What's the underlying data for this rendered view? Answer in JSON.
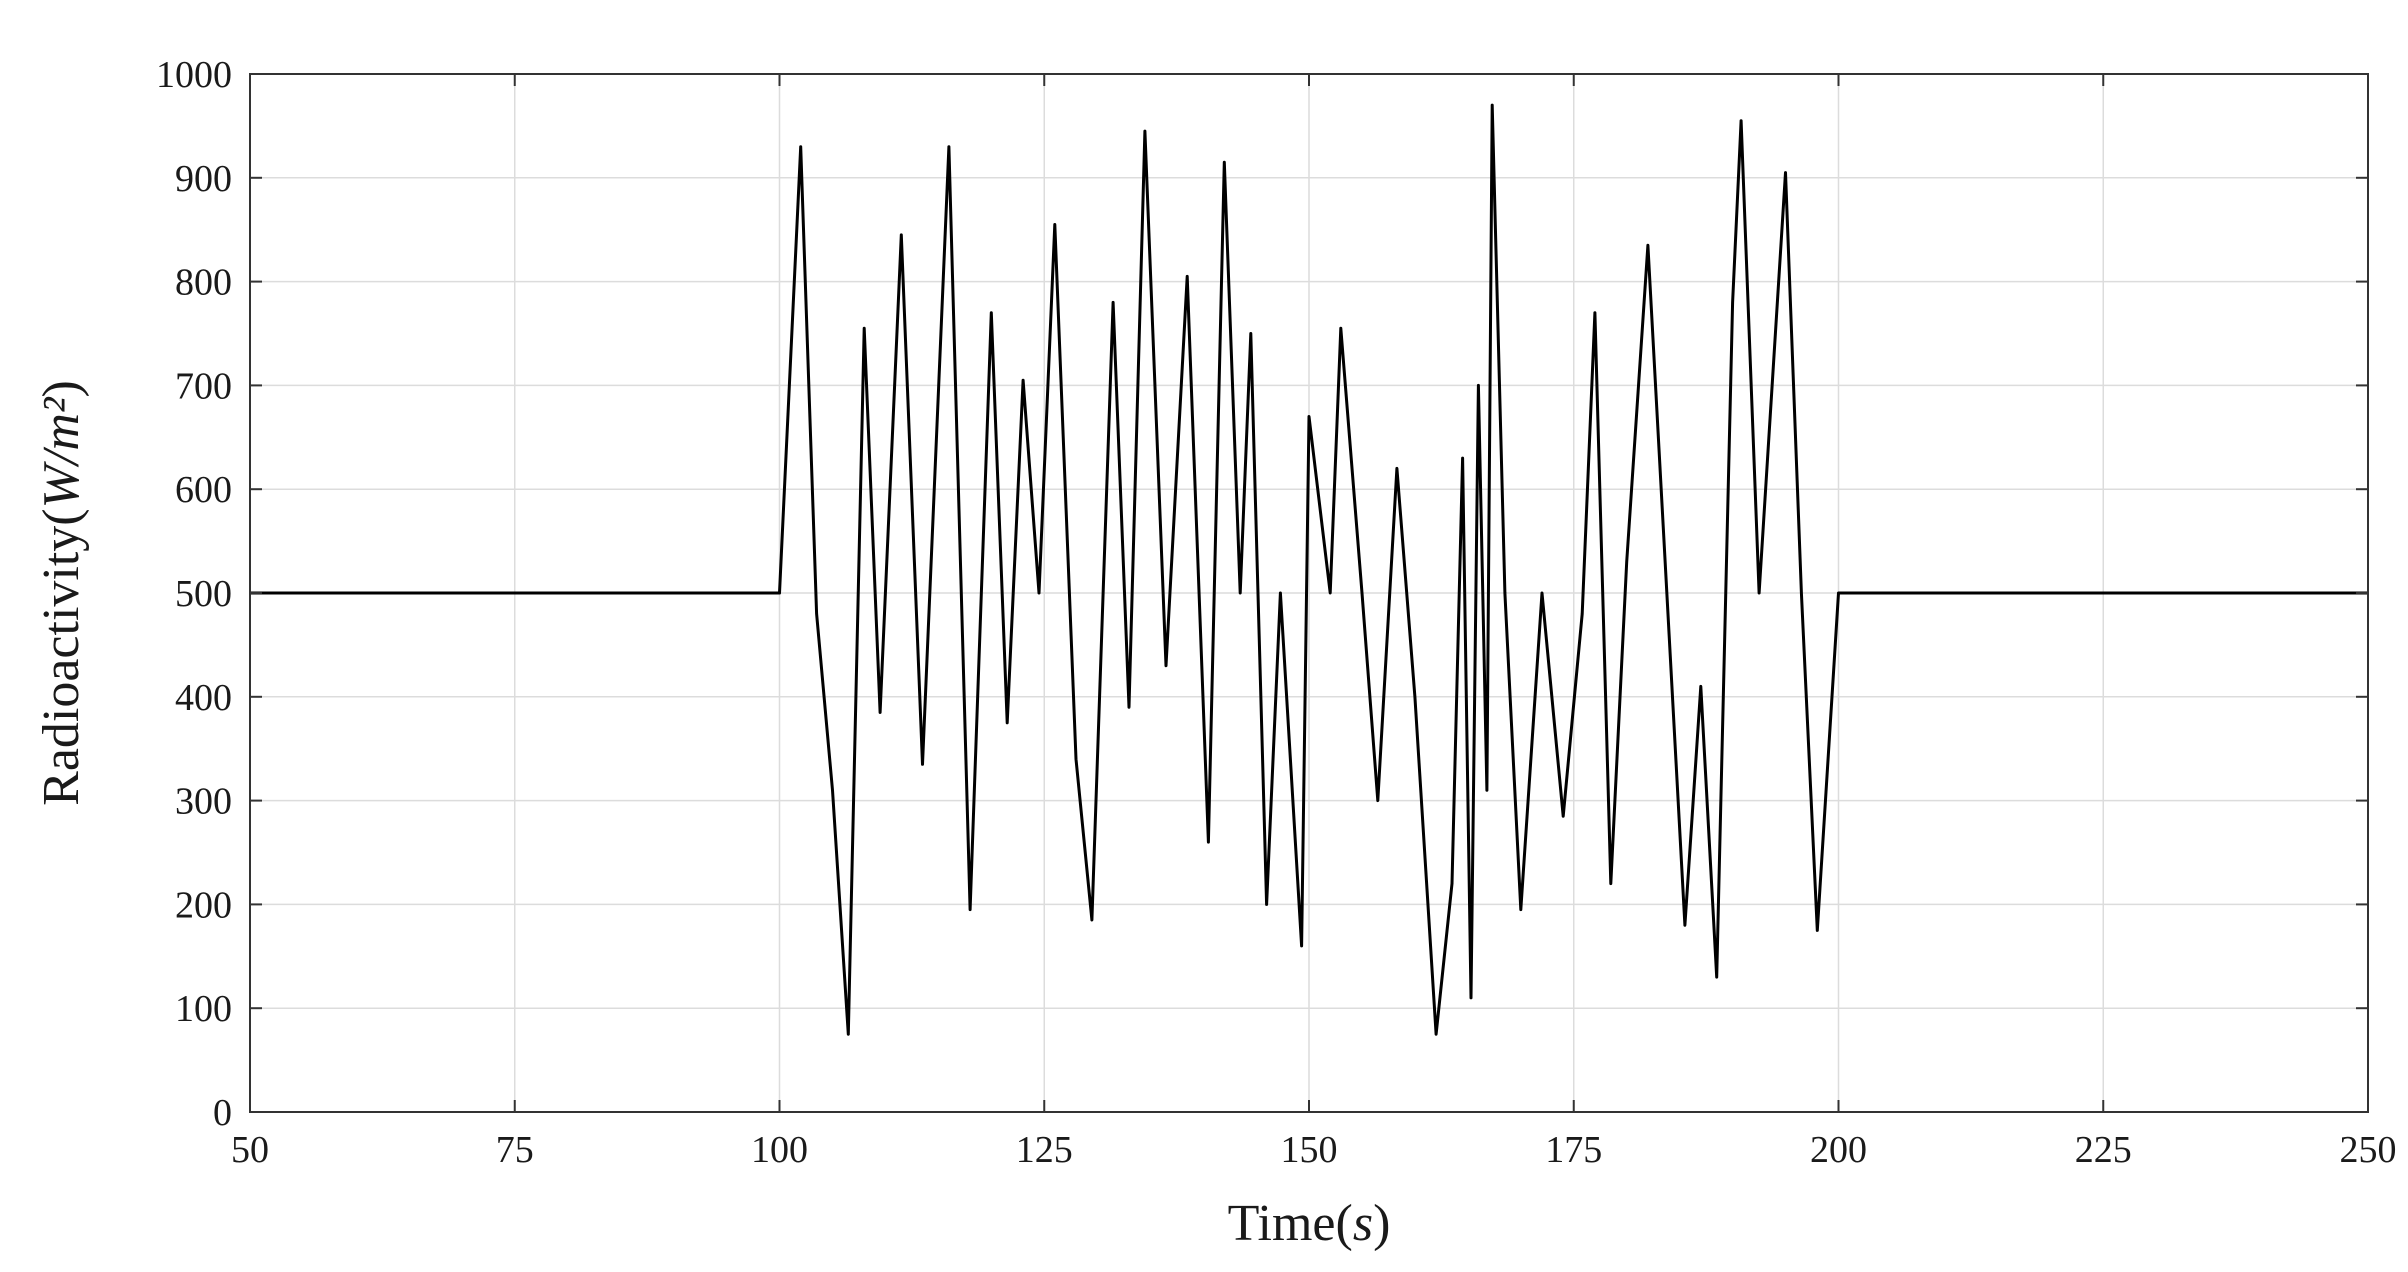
{
  "chart_data": {
    "type": "line",
    "xlabel_prefix": "Time(",
    "xlabel_unit": "s",
    "xlabel_suffix": ")",
    "ylabel_prefix": "Radioactivity(",
    "ylabel_unit": "W/m²",
    "ylabel_suffix": ")",
    "xlim": [
      50,
      250
    ],
    "ylim": [
      0,
      1000
    ],
    "xticks": [
      50,
      75,
      100,
      125,
      150,
      175,
      200,
      225,
      250
    ],
    "yticks": [
      0,
      100,
      200,
      300,
      400,
      500,
      600,
      700,
      800,
      900,
      1000
    ],
    "grid": true,
    "line_color": "#000000",
    "series": [
      {
        "x": [
          50,
          100,
          102,
          103.5,
          105,
          106.5,
          108,
          109.5,
          111.5,
          113.5,
          116,
          118,
          120,
          121.5,
          123,
          124.5,
          126,
          128,
          129.5,
          131.5,
          133,
          134.5,
          136.5,
          138.5,
          140.5,
          142,
          143.5,
          144.5,
          146,
          147.3,
          149.3,
          150,
          152,
          153,
          155,
          156.5,
          158.3,
          160,
          162,
          163.5,
          164.5,
          165.3,
          166,
          166.8,
          167.3,
          168.5,
          170,
          172,
          174,
          175.8,
          177,
          178.5,
          180,
          182,
          184,
          185.5,
          187,
          188.5,
          190,
          190.8,
          192.5,
          195,
          196.5,
          198,
          200,
          250
        ],
        "y": [
          500,
          500,
          930,
          480,
          310,
          75,
          755,
          385,
          845,
          335,
          930,
          195,
          770,
          375,
          705,
          500,
          855,
          340,
          185,
          780,
          390,
          945,
          430,
          805,
          260,
          915,
          500,
          750,
          200,
          500,
          160,
          670,
          500,
          755,
          500,
          300,
          620,
          400,
          75,
          220,
          630,
          110,
          700,
          310,
          970,
          500,
          195,
          500,
          285,
          480,
          770,
          220,
          530,
          835,
          460,
          180,
          410,
          130,
          780,
          955,
          500,
          905,
          500,
          175,
          500,
          500
        ]
      }
    ]
  }
}
